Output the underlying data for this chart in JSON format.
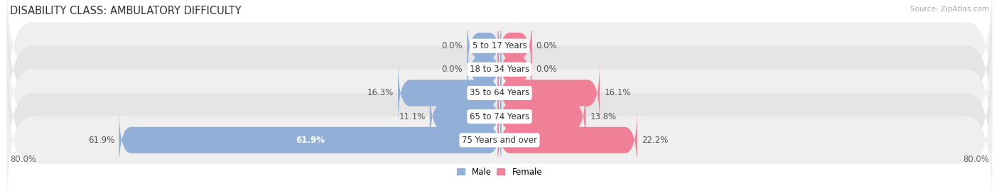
{
  "title": "DISABILITY CLASS: AMBULATORY DIFFICULTY",
  "source": "Source: ZipAtlas.com",
  "categories": [
    "5 to 17 Years",
    "18 to 34 Years",
    "35 to 64 Years",
    "65 to 74 Years",
    "75 Years and over"
  ],
  "male_values": [
    0.0,
    0.0,
    16.3,
    11.1,
    61.9
  ],
  "female_values": [
    0.0,
    0.0,
    16.1,
    13.8,
    22.2
  ],
  "male_color": "#92afd7",
  "female_color": "#f08098",
  "row_bg_colors": [
    "#efefef",
    "#e5e5e5",
    "#efefef",
    "#e5e5e5",
    "#efefef"
  ],
  "x_min": -80.0,
  "x_max": 80.0,
  "x_left_label": "80.0%",
  "x_right_label": "80.0%",
  "title_fontsize": 10.5,
  "source_fontsize": 7.5,
  "label_fontsize": 8.5,
  "category_fontsize": 8.5,
  "value_fontsize": 8.5,
  "bar_height": 0.52,
  "stub_size": 5.0,
  "background_color": "#ffffff",
  "male_label_color": "#ffffff",
  "value_label_color": "#555555"
}
